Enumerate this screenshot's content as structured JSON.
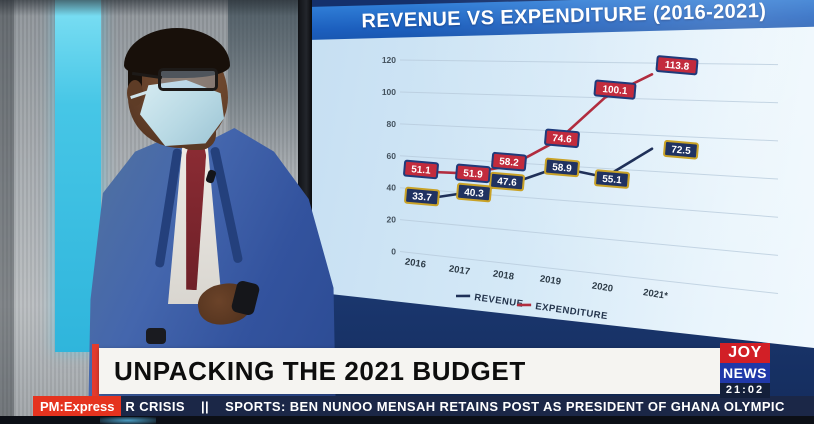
{
  "channel": {
    "logo_top": "JOY",
    "logo_bottom": "NEWS",
    "time": "21:02"
  },
  "lower_third": {
    "headline": "UNPACKING THE 2021 BUDGET",
    "program_badge": "PM:Express",
    "ticker_text": "R CRISIS    ||    SPORTS: BEN NUNOO MENSAH RETAINS POST AS PRESIDENT OF GHANA OLYMPIC"
  },
  "colors": {
    "title_bar": "#1f6bc8",
    "banner_stripe": "#e23b2e",
    "badge_bg": "#e5331f",
    "ticker_bg": "#1b2747",
    "logo_red": "#d21f26",
    "logo_blue": "#2038a8",
    "revenue": "#1f3058",
    "expenditure": "#b12c3e"
  },
  "chart_data": {
    "type": "line",
    "title": "REVENUE VS EXPENDITURE (2016-2021)",
    "categories": [
      "2016",
      "2017",
      "2018",
      "2019",
      "2020",
      "2021*"
    ],
    "series": [
      {
        "name": "REVENUE",
        "color": "#1f3058",
        "label_bg": "#203261",
        "label_border": "#c9a227",
        "values": [
          33.7,
          40.3,
          47.6,
          58.9,
          55.1,
          72.5
        ]
      },
      {
        "name": "EXPENDITURE",
        "color": "#b12c3e",
        "label_bg": "#c22b3d",
        "label_border": "#1f3a7a",
        "values": [
          51.1,
          51.9,
          58.2,
          74.6,
          100.1,
          113.8
        ]
      }
    ],
    "ylim": [
      0,
      120
    ],
    "yticks": [
      0,
      20,
      40,
      60,
      80,
      100,
      120
    ],
    "grid": true,
    "legend_position": "bottom"
  }
}
